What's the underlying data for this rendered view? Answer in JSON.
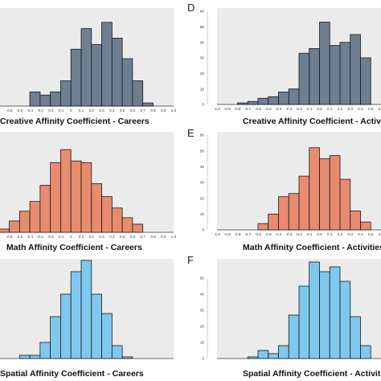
{
  "chart_data": [
    {
      "type": "bar",
      "panel_label": "",
      "xlabel": "Creative Affinity Coefficient - Careers",
      "xtick_labels": [
        "-0.8",
        "-0.7",
        "-0.6",
        "-0.5",
        "-0.4",
        "-0.3",
        "-0.2",
        "-0.1",
        "0",
        "0.1",
        "0.2",
        "0.3",
        "0.4",
        "0.5",
        "0.6",
        "0.7",
        "0.8",
        "0.9",
        "1.0"
      ],
      "xlim": [
        -0.8,
        1.0
      ],
      "ylim": [
        0,
        60
      ],
      "y_ticks_shown": false,
      "bin_width": 0.1,
      "bin_starts": [
        -0.5,
        -0.4,
        -0.3,
        -0.2,
        -0.1,
        0.0,
        0.1,
        0.2,
        0.3,
        0.4,
        0.5,
        0.6,
        0.7
      ],
      "values": [
        0,
        9,
        7,
        9,
        16,
        36,
        49,
        39,
        53,
        43,
        30,
        16,
        2
      ],
      "color": "#6d7f91",
      "grid": false,
      "background": "#ebebeb"
    },
    {
      "type": "bar",
      "panel_label": "D",
      "xlabel": "Creative Affinity Coefficient - Activities",
      "xtick_labels": [
        "-1.0",
        "-0.9",
        "-0.8",
        "-0.7",
        "-0.6",
        "-0.5",
        "-0.4",
        "-0.3",
        "-0.2",
        "-0.1",
        "0.0",
        "0.1",
        "0.2",
        "0.3",
        "0.4",
        "0.5",
        "0.6"
      ],
      "xlim": [
        -1.0,
        0.6
      ],
      "ylim": [
        0,
        60
      ],
      "yticks": [
        0,
        10,
        20,
        30,
        40,
        50,
        60
      ],
      "bin_width": 0.1,
      "bin_starts": [
        -0.8,
        -0.7,
        -0.6,
        -0.5,
        -0.4,
        -0.3,
        -0.2,
        -0.1,
        0.0,
        0.1,
        0.2,
        0.3,
        0.4
      ],
      "values": [
        1,
        2,
        4,
        5,
        8,
        10,
        33,
        36,
        53,
        38,
        40,
        45,
        30
      ],
      "color": "#6d7f91",
      "grid": false,
      "background": "#ebebeb"
    },
    {
      "type": "bar",
      "panel_label": "",
      "xlabel": "Math Affinity Coefficient - Careers",
      "xtick_labels": [
        "-0.8",
        "-0.7",
        "-0.6",
        "-0.5",
        "-0.4",
        "-0.3",
        "-0.2",
        "-0.1",
        "0",
        "0.1",
        "0.2",
        "0.3",
        "0.4",
        "0.5",
        "0.6",
        "0.7",
        "0.8",
        "0.9",
        "1.0"
      ],
      "xlim": [
        -0.8,
        1.0
      ],
      "ylim": [
        0,
        60
      ],
      "y_ticks_shown": false,
      "bin_width": 0.1,
      "bin_starts": [
        -0.7,
        -0.6,
        -0.5,
        -0.4,
        -0.3,
        -0.2,
        -0.1,
        0.0,
        0.1,
        0.2,
        0.3,
        0.4,
        0.5,
        0.6
      ],
      "values": [
        2,
        7,
        13,
        19,
        29,
        43,
        51,
        44,
        43,
        30,
        22,
        15,
        9,
        5
      ],
      "color": "#e88b6f",
      "grid": false,
      "background": "#ebebeb"
    },
    {
      "type": "bar",
      "panel_label": "E",
      "xlabel": "Math Affinity Coefficient - Activities",
      "xtick_labels": [
        "-1.0",
        "-0.9",
        "-0.8",
        "-0.7",
        "-0.6",
        "-0.5",
        "-0.4",
        "-0.3",
        "-0.2",
        "-0.1",
        "0.0",
        "0.1",
        "0.2",
        "0.3",
        "0.4",
        "0.5",
        "0.6"
      ],
      "xlim": [
        -1.0,
        0.6
      ],
      "ylim": [
        0,
        60
      ],
      "yticks": [
        0,
        10,
        20,
        30,
        40,
        50,
        60
      ],
      "bin_width": 0.1,
      "bin_starts": [
        -0.6,
        -0.5,
        -0.4,
        -0.3,
        -0.2,
        -0.1,
        0.0,
        0.1,
        0.2,
        0.3,
        0.4
      ],
      "values": [
        4,
        10,
        21,
        23,
        34,
        52,
        45,
        47,
        32,
        12,
        5
      ],
      "color": "#e88b6f",
      "grid": false,
      "background": "#ebebeb"
    },
    {
      "type": "bar",
      "panel_label": "",
      "xlabel": "Spatial Affinity Coefficient - Careers",
      "xtick_labels": [],
      "xlim": [
        -0.8,
        1.0
      ],
      "ylim": [
        0,
        60
      ],
      "y_ticks_shown": false,
      "bin_width": 0.1,
      "bin_starts": [
        -0.5,
        -0.4,
        -0.3,
        -0.2,
        -0.1,
        0.0,
        0.1,
        0.2,
        0.3,
        0.4,
        0.5
      ],
      "values": [
        2,
        2,
        10,
        26,
        40,
        54,
        61,
        40,
        28,
        8,
        1
      ],
      "color": "#7ec8ee",
      "grid": false,
      "background": "#ebebeb"
    },
    {
      "type": "bar",
      "panel_label": "F",
      "xlabel": "Spatial Affinity Coefficient - Activities",
      "xtick_labels": [],
      "xlim": [
        -1.0,
        0.6
      ],
      "ylim": [
        0,
        60
      ],
      "yticks": [
        0,
        10,
        20,
        30,
        40,
        50
      ],
      "bin_width": 0.1,
      "bin_starts": [
        -0.7,
        -0.6,
        -0.5,
        -0.4,
        -0.3,
        -0.2,
        -0.1,
        0.0,
        0.1,
        0.2,
        0.3,
        0.4
      ],
      "values": [
        1,
        5,
        3,
        8,
        27,
        45,
        60,
        54,
        57,
        48,
        26,
        8
      ],
      "color": "#7ec8ee",
      "grid": false,
      "background": "#ebebeb"
    }
  ]
}
